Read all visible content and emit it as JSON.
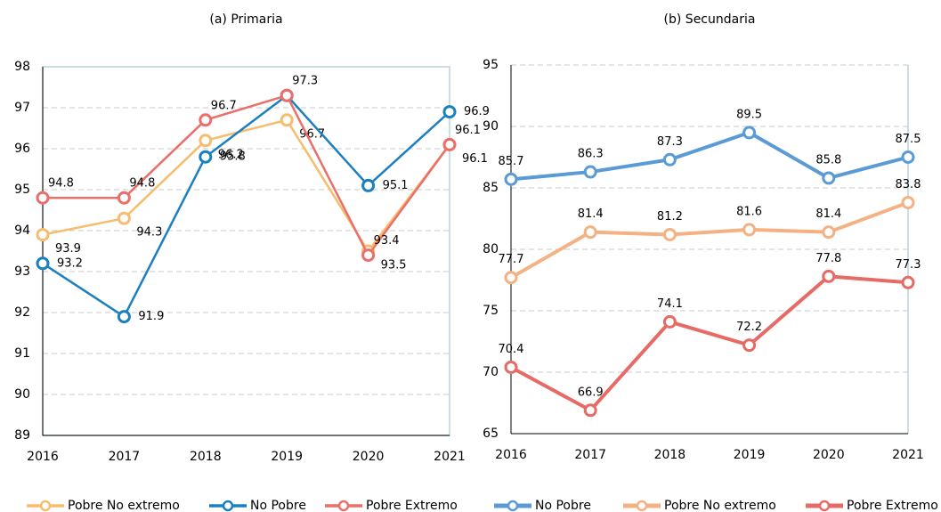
{
  "chart_data": [
    {
      "type": "line",
      "title": "(a) Primaria",
      "categories": [
        "2016",
        "2017",
        "2018",
        "2019",
        "2020",
        "2021"
      ],
      "ylim": [
        89,
        98
      ],
      "yticks": [
        89,
        90,
        91,
        92,
        93,
        94,
        95,
        96,
        97,
        98
      ],
      "grid": true,
      "legend": "bottom",
      "series": [
        {
          "name": "Pobre No extremo",
          "color": "#f6bd6e",
          "label_color": "#7f7f7f",
          "values": [
            93.9,
            94.3,
            96.2,
            96.7,
            93.5,
            96.1
          ]
        },
        {
          "name": "No Pobre",
          "color": "#1b7fc0",
          "label_color": "#2e9bd6",
          "values": [
            93.2,
            91.9,
            95.8,
            97.3,
            95.1,
            96.9
          ],
          "value_labels": [
            "93.2",
            "91.9",
            "95.8",
            null,
            "95.1",
            "96.9"
          ]
        },
        {
          "name": "Pobre Extremo",
          "color": "#ea6f6a",
          "label_color": "#ea6f6a",
          "values": [
            94.8,
            94.8,
            96.7,
            97.3,
            93.4,
            96.1
          ]
        }
      ]
    },
    {
      "type": "line",
      "title": "(b) Secundaria",
      "categories": [
        "2016",
        "2017",
        "2018",
        "2019",
        "2020",
        "2021"
      ],
      "ylim": [
        65,
        95
      ],
      "yticks": [
        65,
        70,
        75,
        80,
        85,
        90,
        95
      ],
      "grid": true,
      "legend": "bottom",
      "series": [
        {
          "name": "No Pobre",
          "color": "#5b9bd5",
          "label_color": "#1f7fc0",
          "values": [
            85.7,
            86.3,
            87.3,
            89.5,
            85.8,
            87.5
          ]
        },
        {
          "name": "Pobre No extremo",
          "color": "#f4b183",
          "label_color": "#ed7d31",
          "values": [
            77.7,
            81.4,
            81.2,
            81.6,
            81.4,
            83.8
          ]
        },
        {
          "name": "Pobre Extremo",
          "color": "#e66a66",
          "label_color": "#e66a66",
          "values": [
            70.4,
            66.9,
            74.1,
            72.2,
            77.8,
            77.3
          ]
        }
      ]
    }
  ]
}
